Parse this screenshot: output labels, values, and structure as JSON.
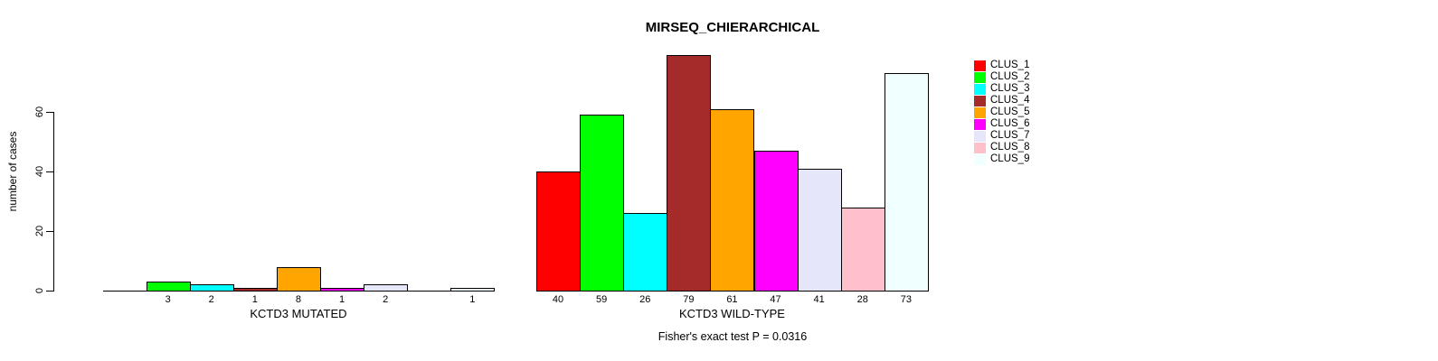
{
  "chart_data": {
    "type": "bar",
    "title": "MIRSEQ_CHIERARCHICAL",
    "ylabel": "number of cases",
    "yticks": [
      0,
      20,
      40,
      60
    ],
    "ylim": [
      0,
      79
    ],
    "grid": false,
    "legend_position": "right",
    "bar_border_color": "#000000",
    "clusters": [
      {
        "name": "CLUS_1",
        "color": "#FF0000"
      },
      {
        "name": "CLUS_2",
        "color": "#00FF00"
      },
      {
        "name": "CLUS_3",
        "color": "#00FFFF"
      },
      {
        "name": "CLUS_4",
        "color": "#A52A2A"
      },
      {
        "name": "CLUS_5",
        "color": "#FFA500"
      },
      {
        "name": "CLUS_6",
        "color": "#FF00FF"
      },
      {
        "name": "CLUS_7",
        "color": "#E6E6FA"
      },
      {
        "name": "CLUS_8",
        "color": "#FFC0CB"
      },
      {
        "name": "CLUS_9",
        "color": "#F0FFFF"
      }
    ],
    "groups": [
      {
        "label": "KCTD3 MUTATED",
        "values": [
          0,
          3,
          2,
          1,
          8,
          1,
          2,
          0,
          1
        ],
        "bar_labels": [
          "",
          "3",
          "2",
          "1",
          "8",
          "1",
          "2",
          "",
          "1"
        ]
      },
      {
        "label": "KCTD3 WILD-TYPE",
        "values": [
          40,
          59,
          26,
          79,
          61,
          47,
          41,
          28,
          73
        ],
        "bar_labels": [
          "40",
          "59",
          "26",
          "79",
          "61",
          "47",
          "41",
          "28",
          "73"
        ]
      }
    ],
    "annotation": "Fisher's exact test P = 0.0316"
  }
}
